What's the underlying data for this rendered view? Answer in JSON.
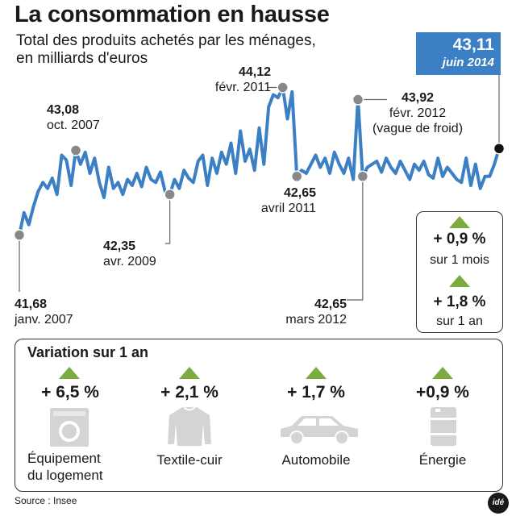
{
  "header": {
    "title": "La consommation en hausse",
    "subtitle_line1": "Total des produits achetés par les ménages,",
    "subtitle_line2": "en milliards d'euros"
  },
  "latest_badge": {
    "value": "43,11",
    "date": "juin 2014"
  },
  "annotations": {
    "start": {
      "value": "41,68",
      "date": "janv. 2007"
    },
    "oct2007": {
      "value": "43,08",
      "date": "oct. 2007"
    },
    "apr2009": {
      "value": "42,35",
      "date": "avr. 2009"
    },
    "feb2011": {
      "value": "44,12",
      "date": "févr. 2011"
    },
    "apr2011": {
      "value": "42,65",
      "date": "avril 2011"
    },
    "mar2012": {
      "value": "42,65",
      "date": "mars 2012"
    },
    "feb2012": {
      "value": "43,92",
      "date": "févr. 2012",
      "note": "(vague de froid)"
    }
  },
  "variations": {
    "month": {
      "value": "+ 0,9 %",
      "label": "sur 1 mois"
    },
    "year": {
      "value": "+ 1,8 %",
      "label": "sur 1 an"
    }
  },
  "breakdown": {
    "title": "Variation sur 1 an",
    "categories": [
      {
        "value": "+ 6,5 %",
        "label_line1": "Équipement",
        "label_line2": "du logement",
        "icon": "washing-machine-icon"
      },
      {
        "value": "+ 2,1 %",
        "label_line1": "Textile-cuir",
        "label_line2": "",
        "icon": "sweater-icon"
      },
      {
        "value": "+ 1,7 %",
        "label_line1": "Automobile",
        "label_line2": "",
        "icon": "car-icon"
      },
      {
        "value": "+0,9 %",
        "label_line1": "Énergie",
        "label_line2": "",
        "icon": "oil-barrel-icon"
      }
    ]
  },
  "footer": {
    "source": "Source : Insee",
    "logo_text": "idé"
  },
  "colors": {
    "line": "#3b7fc4",
    "marker": "#888888",
    "last_marker": "#111111",
    "up_arrow": "#7cab3f",
    "icon": "#d4d4d4"
  },
  "chart_data": {
    "type": "line",
    "title": "La consommation en hausse",
    "ylabel": "milliards d'euros",
    "x_start": "janv. 2007",
    "x_end": "juin 2014",
    "ylim": [
      41.3,
      44.5
    ],
    "values": [
      41.68,
      42.05,
      41.85,
      42.15,
      42.4,
      42.55,
      42.45,
      42.62,
      42.35,
      43.0,
      42.92,
      42.5,
      43.08,
      42.85,
      43.05,
      42.7,
      42.95,
      42.55,
      42.3,
      42.8,
      42.45,
      42.55,
      42.35,
      42.6,
      42.5,
      42.7,
      42.48,
      42.8,
      42.6,
      42.55,
      42.72,
      42.4,
      42.35,
      42.6,
      42.45,
      42.75,
      42.62,
      42.55,
      42.9,
      43.0,
      42.5,
      42.95,
      42.7,
      43.05,
      42.85,
      43.2,
      42.7,
      43.4,
      42.9,
      43.1,
      42.75,
      43.45,
      42.85,
      43.8,
      44.0,
      43.95,
      44.12,
      43.6,
      44.05,
      42.65,
      42.75,
      42.7,
      42.85,
      43.0,
      42.8,
      42.95,
      42.7,
      43.05,
      42.85,
      42.7,
      42.95,
      42.6,
      43.92,
      42.65,
      42.8,
      42.85,
      42.9,
      42.72,
      42.95,
      42.8,
      42.7,
      42.9,
      42.75,
      42.6,
      42.85,
      42.75,
      42.9,
      42.68,
      42.62,
      42.95,
      42.65,
      42.8,
      42.7,
      42.6,
      42.55,
      42.95,
      42.5,
      42.85,
      42.45,
      42.65,
      42.65,
      42.85,
      43.11
    ],
    "highlighted_points": [
      {
        "date": "janv. 2007",
        "value": 41.68
      },
      {
        "date": "oct. 2007",
        "value": 43.08
      },
      {
        "date": "avr. 2009",
        "value": 42.35
      },
      {
        "date": "févr. 2011",
        "value": 44.12
      },
      {
        "date": "avril 2011",
        "value": 42.65
      },
      {
        "date": "févr. 2012",
        "value": 43.92
      },
      {
        "date": "mars 2012",
        "value": 42.65
      },
      {
        "date": "juin 2014",
        "value": 43.11
      }
    ]
  }
}
